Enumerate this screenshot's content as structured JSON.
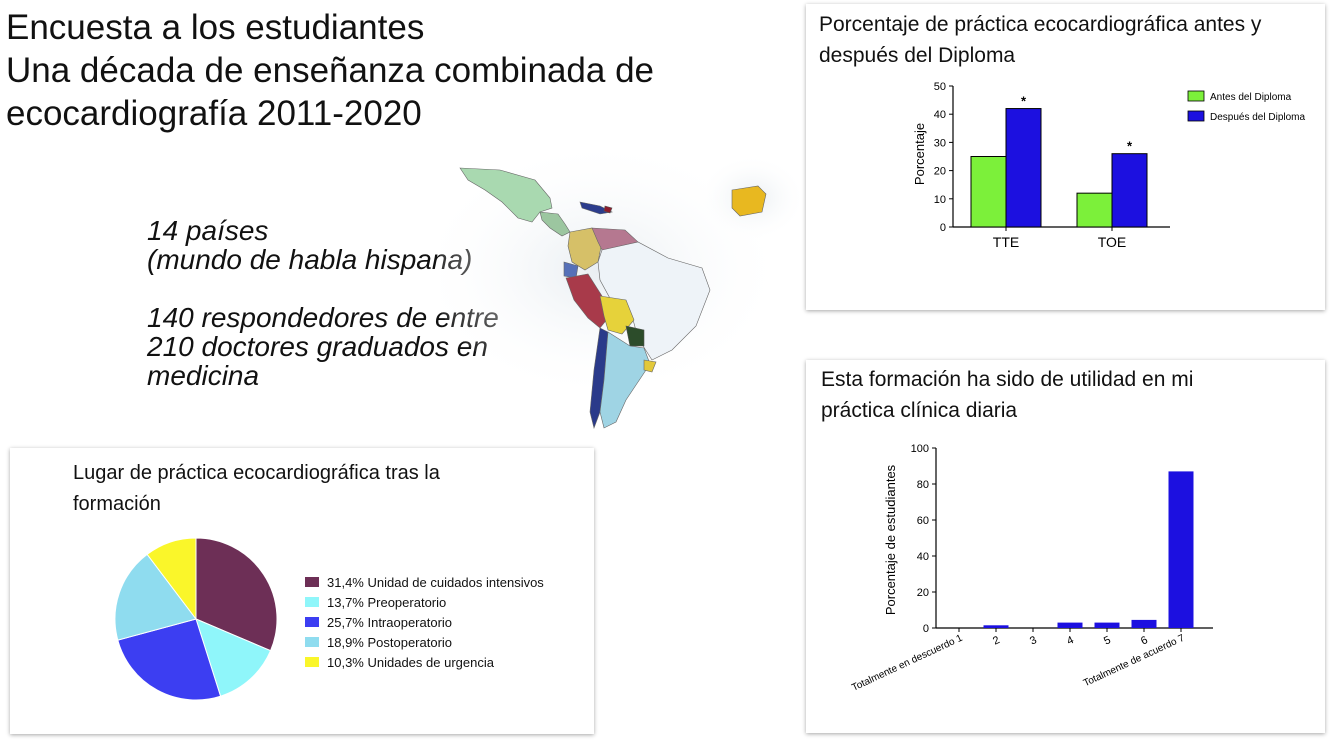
{
  "slide": {
    "title_lines": [
      "Encuesta a los estudiantes",
      "Una década de enseñanza combinada de",
      "ecocardiografía 2011-2020"
    ],
    "stats": [
      "14 países\n(mundo de habla hispana)",
      "140 respondedores de entre\n210 doctores graduados en\nmedicina"
    ]
  },
  "colors": {
    "antes": "#7cf03a",
    "despues": "#1c10e0",
    "bars": "#1c10e0",
    "pie": [
      "#6d2f56",
      "#8ff6fa",
      "#3c3ef2",
      "#8fdcef",
      "#faf62a"
    ]
  },
  "map": {
    "regions": [
      "Mexico",
      "Central America",
      "Caribbean",
      "Venezuela",
      "Colombia",
      "Ecuador",
      "Peru",
      "Bolivia",
      "Paraguay",
      "Chile",
      "Argentina",
      "Uruguay",
      "Spain"
    ]
  },
  "chart_data": [
    {
      "type": "bar",
      "title_lines": [
        "Porcentaje de práctica ecocardiográfica antes y",
        "después del Diploma"
      ],
      "categories": [
        "TTE",
        "TOE"
      ],
      "series": [
        {
          "name": "Antes del Diploma",
          "values": [
            25,
            12
          ]
        },
        {
          "name": "Después del Diploma",
          "values": [
            42,
            26
          ]
        }
      ],
      "significance": [
        "*",
        "*"
      ],
      "ylabel": "Porcentaje",
      "ylim": [
        0,
        50
      ],
      "yticks": [
        0,
        10,
        20,
        30,
        40,
        50
      ],
      "legend": "top-right",
      "grid": false
    },
    {
      "type": "bar",
      "title_lines": [
        "Esta formación ha sido de utilidad en mi",
        "práctica clínica diaria"
      ],
      "categories": [
        "Totalmente en descuerdo 1",
        "2",
        "3",
        "4",
        "5",
        "6",
        "Totalmente de acuerdo 7"
      ],
      "values": [
        0,
        1.5,
        0,
        3,
        3,
        4.5,
        87
      ],
      "ylabel": "Porcentaje de estudiantes",
      "ylim": [
        0,
        100
      ],
      "yticks": [
        0,
        20,
        40,
        60,
        80,
        100
      ],
      "grid": false
    },
    {
      "type": "pie",
      "title_lines": [
        "Lugar de práctica ecocardiográfica tras la",
        "formación"
      ],
      "labels": [
        "31,4% Unidad de cuidados intensivos",
        "13,7% Preoperatorio",
        "25,7% Intraoperatorio",
        "18,9% Postoperatorio",
        "10,3% Unidades de urgencia"
      ],
      "values": [
        31.4,
        13.7,
        25.7,
        18.9,
        10.3
      ],
      "legend": "right"
    }
  ]
}
